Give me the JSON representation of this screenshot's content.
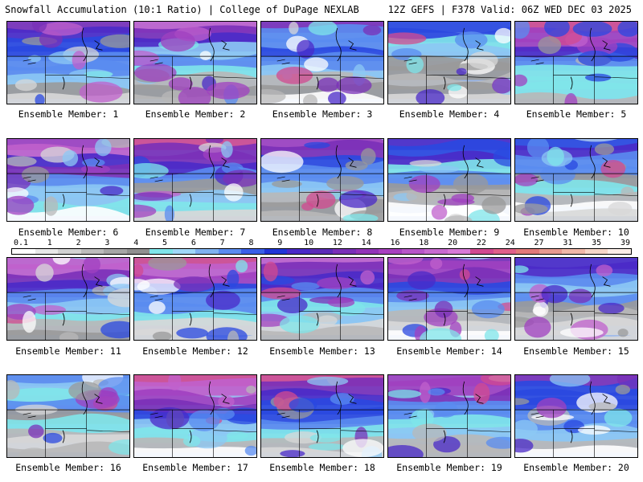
{
  "header": {
    "title": "Snowfall Accumulation (10:1 Ratio) | College of DuPage NEXLAB",
    "run_info": "12Z GEFS | F378 Valid: 06Z WED DEC 03 2025"
  },
  "colorbar": {
    "labels": [
      "0.1",
      "1",
      "2",
      "3",
      "4",
      "5",
      "6",
      "7",
      "8",
      "9",
      "10",
      "12",
      "14",
      "16",
      "18",
      "20",
      "22",
      "24",
      "27",
      "31",
      "35",
      "39"
    ],
    "colors": [
      "#ffffff",
      "#e8e8e8",
      "#d2d2d2",
      "#bcbcbc",
      "#a6a6a6",
      "#909090",
      "#7fe6ea",
      "#a0d8f8",
      "#7fb2f0",
      "#5a8cf0",
      "#3a60e8",
      "#2036d8",
      "#4a2ac8",
      "#5c2cb8",
      "#7a30b8",
      "#9234b8",
      "#a840c0",
      "#b855c8",
      "#c86ad0",
      "#d87ad8",
      "#d24a90",
      "#e0608a",
      "#e27a7a",
      "#e89a90",
      "#f0b8a8",
      "#f6d6c8",
      "#fbeee8"
    ]
  },
  "members": [
    {
      "label": "Ensemble Member: 1"
    },
    {
      "label": "Ensemble Member: 2"
    },
    {
      "label": "Ensemble Member: 3"
    },
    {
      "label": "Ensemble Member: 4"
    },
    {
      "label": "Ensemble Member: 5"
    },
    {
      "label": "Ensemble Member: 6"
    },
    {
      "label": "Ensemble Member: 7"
    },
    {
      "label": "Ensemble Member: 8"
    },
    {
      "label": "Ensemble Member: 9"
    },
    {
      "label": "Ensemble Member: 10"
    },
    {
      "label": "Ensemble Member: 11"
    },
    {
      "label": "Ensemble Member: 12"
    },
    {
      "label": "Ensemble Member: 13"
    },
    {
      "label": "Ensemble Member: 14"
    },
    {
      "label": "Ensemble Member: 15"
    },
    {
      "label": "Ensemble Member: 16"
    },
    {
      "label": "Ensemble Member: 17"
    },
    {
      "label": "Ensemble Member: 18"
    },
    {
      "label": "Ensemble Member: 19"
    },
    {
      "label": "Ensemble Member: 20"
    }
  ]
}
